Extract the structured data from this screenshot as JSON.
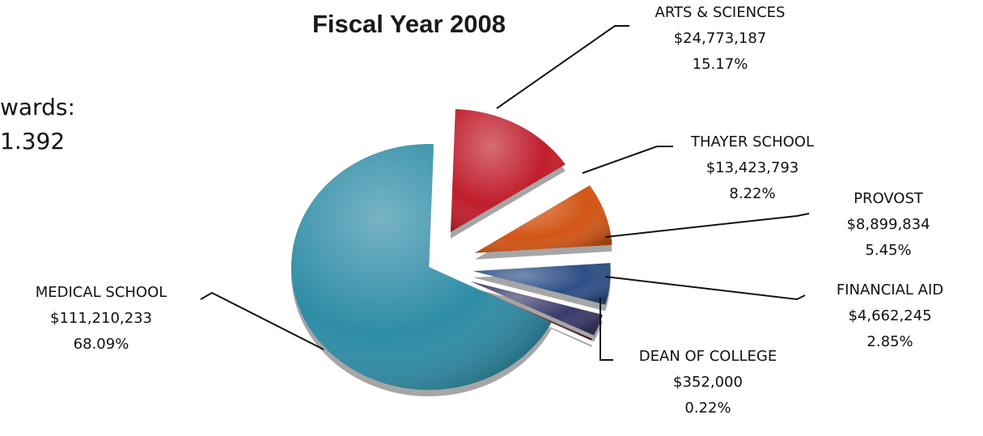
{
  "chart_data": {
    "type": "pie",
    "title_lines": [
      "Fiscal Year 2008"
    ],
    "subtitle_fragment": [
      "wards:",
      "1.392"
    ],
    "slices": [
      {
        "name": "MEDICAL SCHOOL",
        "amount": "$111,210,233",
        "percent_label": "68.09%",
        "value": 68.09,
        "color": "#2e8ca6"
      },
      {
        "name": "ARTS & SCIENCES",
        "amount": "$24,773,187",
        "percent_label": "15.17%",
        "value": 15.17,
        "color": "#c01d2b"
      },
      {
        "name": "THAYER SCHOOL",
        "amount": "$13,423,793",
        "percent_label": "8.22%",
        "value": 8.22,
        "color": "#d25516"
      },
      {
        "name": "PROVOST",
        "amount": "$8,899,834",
        "percent_label": "5.45%",
        "value": 5.45,
        "color": "#2d4f86"
      },
      {
        "name": "FINANCIAL AID",
        "amount": "$4,662,245",
        "percent_label": "2.85%",
        "value": 2.85,
        "color": "#3a3a6a"
      },
      {
        "name": "DEAN OF COLLEGE",
        "amount": "$352,000",
        "percent_label": "0.22%",
        "value": 0.22,
        "color": "#5a2030"
      }
    ]
  }
}
